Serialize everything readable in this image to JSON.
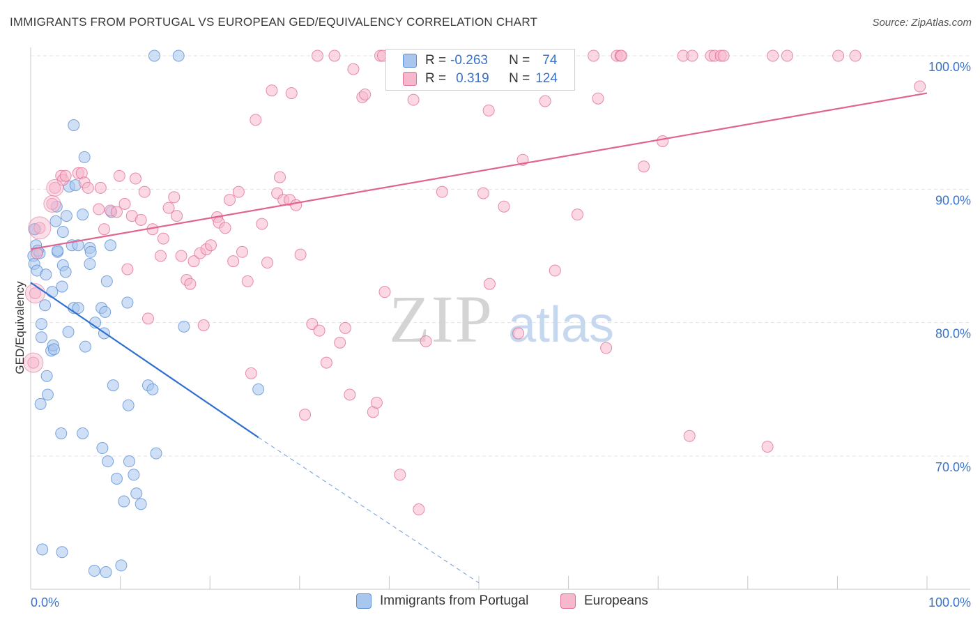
{
  "title": "IMMIGRANTS FROM PORTUGAL VS EUROPEAN GED/EQUIVALENCY CORRELATION CHART",
  "source": "Source: ZipAtlas.com",
  "watermark": {
    "zip": "ZIP",
    "atlas": "atlas"
  },
  "legend": {
    "r_label": "R =",
    "n_label": "N =",
    "rows": [
      {
        "r": "-0.263",
        "n": "74",
        "color": "#a8c6ee",
        "border": "#5b8fd4"
      },
      {
        "r": "0.319",
        "n": "124",
        "color": "#f7b8cc",
        "border": "#e07098"
      }
    ]
  },
  "chart_data": {
    "type": "scatter",
    "title": "IMMIGRANTS FROM PORTUGAL VS EUROPEAN GED/EQUIVALENCY CORRELATION CHART",
    "xlabel": "",
    "ylabel": "GED/Equivalency",
    "xlim": [
      0,
      100
    ],
    "ylim": [
      60.5,
      104
    ],
    "x_tick_labels": [
      "0.0%",
      "100.0%"
    ],
    "y_ticks": [
      70,
      80,
      90,
      100
    ],
    "y_tick_labels": [
      "70.0%",
      "80.0%",
      "90.0%",
      "100.0%"
    ],
    "grid": true,
    "series": [
      {
        "name": "Immigrants from Portugal",
        "color": "#a8c6ee",
        "stroke": "#5b8fd4",
        "trend": {
          "x0": 0,
          "y0": 83,
          "x1": 25.4,
          "y1": 71.4,
          "dash_to_x": 50,
          "dash_to_y": 60.5,
          "color": "#2e6fcf"
        },
        "points": [
          [
            0.3,
            85
          ],
          [
            0.4,
            84.4
          ],
          [
            0.5,
            87
          ],
          [
            0.6,
            85.8
          ],
          [
            0.7,
            83.9
          ],
          [
            1,
            85.2
          ],
          [
            1.2,
            79.9
          ],
          [
            1.2,
            78.9
          ],
          [
            1.6,
            81.3
          ],
          [
            1.7,
            83.6
          ],
          [
            1.8,
            76
          ],
          [
            1.9,
            74.6
          ],
          [
            2.3,
            77.9
          ],
          [
            2.4,
            82.3
          ],
          [
            2.5,
            78.3
          ],
          [
            2.6,
            78
          ],
          [
            2.8,
            87.6
          ],
          [
            2.9,
            88.7
          ],
          [
            3,
            85.3
          ],
          [
            3,
            85.4
          ],
          [
            3.4,
            71.7
          ],
          [
            3.5,
            82.7
          ],
          [
            3.6,
            84.3
          ],
          [
            3.6,
            86.8
          ],
          [
            3.9,
            83.8
          ],
          [
            4,
            88
          ],
          [
            4.2,
            79.3
          ],
          [
            4.3,
            90.2
          ],
          [
            4.6,
            85.8
          ],
          [
            4.8,
            94.8
          ],
          [
            4.8,
            81.1
          ],
          [
            5.3,
            85.8
          ],
          [
            5.3,
            81.1
          ],
          [
            5.8,
            71.7
          ],
          [
            5.8,
            88.1
          ],
          [
            6.1,
            78.2
          ],
          [
            6.6,
            85.6
          ],
          [
            6.6,
            84.4
          ],
          [
            6.7,
            85.3
          ],
          [
            7.2,
            80
          ],
          [
            7.9,
            81.1
          ],
          [
            8,
            70.6
          ],
          [
            8.2,
            79.2
          ],
          [
            8.3,
            80.8
          ],
          [
            8.5,
            83.1
          ],
          [
            8.6,
            69.6
          ],
          [
            8.9,
            85.8
          ],
          [
            9.2,
            75.3
          ],
          [
            9.6,
            68.3
          ],
          [
            10.4,
            66.6
          ],
          [
            10.8,
            81.5
          ],
          [
            10.9,
            73.8
          ],
          [
            11,
            69.6
          ],
          [
            11.5,
            68.6
          ],
          [
            11.8,
            67.2
          ],
          [
            12.3,
            66.4
          ],
          [
            13.1,
            75.3
          ],
          [
            13.6,
            75
          ],
          [
            14,
            70.2
          ],
          [
            17.1,
            79.7
          ],
          [
            25.4,
            75
          ],
          [
            1.3,
            63
          ],
          [
            3.5,
            62.8
          ],
          [
            7.1,
            61.4
          ],
          [
            8.4,
            61.3
          ],
          [
            10.1,
            61.8
          ],
          [
            13.8,
            100
          ],
          [
            16.5,
            100
          ],
          [
            0.4,
            87
          ],
          [
            0.8,
            85.4
          ],
          [
            5,
            90.3
          ],
          [
            6,
            92.4
          ],
          [
            9,
            88.3
          ],
          [
            1.1,
            73.9
          ]
        ]
      },
      {
        "name": "Europeans",
        "color": "#f7b8cc",
        "stroke": "#e07098",
        "trend": {
          "x0": 0,
          "y0": 85.5,
          "x1": 100,
          "y1": 97.2,
          "color": "#e0648f"
        },
        "points": [
          [
            0.3,
            77
          ],
          [
            0.5,
            82.2
          ],
          [
            0.7,
            85.2
          ],
          [
            1,
            87.1
          ],
          [
            2.4,
            88.9
          ],
          [
            2.7,
            90.1
          ],
          [
            3.4,
            91
          ],
          [
            3.6,
            90.7
          ],
          [
            3.9,
            91
          ],
          [
            5.3,
            91.2
          ],
          [
            5.7,
            91.2
          ],
          [
            6,
            90.5
          ],
          [
            6.4,
            90.1
          ],
          [
            7.6,
            88.5
          ],
          [
            7.8,
            90.1
          ],
          [
            8.2,
            87
          ],
          [
            8.9,
            88.4
          ],
          [
            9.6,
            88.3
          ],
          [
            9.9,
            91
          ],
          [
            10.5,
            88.9
          ],
          [
            10.8,
            84
          ],
          [
            11.3,
            88
          ],
          [
            11.7,
            90.8
          ],
          [
            12.3,
            87.7
          ],
          [
            12.7,
            89.8
          ],
          [
            13.1,
            80.3
          ],
          [
            13.6,
            87
          ],
          [
            14.5,
            85
          ],
          [
            14.8,
            86.3
          ],
          [
            15.4,
            88.6
          ],
          [
            16,
            89.4
          ],
          [
            16.3,
            88
          ],
          [
            16.8,
            85
          ],
          [
            17.4,
            83.2
          ],
          [
            17.8,
            82.9
          ],
          [
            18.2,
            84.6
          ],
          [
            18.9,
            85.2
          ],
          [
            19.3,
            79.8
          ],
          [
            19.6,
            85.5
          ],
          [
            20.1,
            85.8
          ],
          [
            20.8,
            87.9
          ],
          [
            21,
            87.5
          ],
          [
            21.7,
            87.1
          ],
          [
            22.2,
            89.2
          ],
          [
            22.6,
            84.6
          ],
          [
            23.2,
            89.8
          ],
          [
            23.6,
            85.3
          ],
          [
            24.2,
            83.1
          ],
          [
            24.6,
            76.2
          ],
          [
            25.1,
            95.2
          ],
          [
            25.8,
            87.4
          ],
          [
            26.4,
            84.5
          ],
          [
            26.9,
            97.4
          ],
          [
            27.5,
            89.7
          ],
          [
            27.8,
            90.9
          ],
          [
            28.2,
            89.2
          ],
          [
            28.9,
            89.2
          ],
          [
            29.1,
            97.2
          ],
          [
            29.6,
            88.8
          ],
          [
            30.1,
            85.1
          ],
          [
            30.6,
            73.1
          ],
          [
            31.4,
            79.9
          ],
          [
            32,
            100
          ],
          [
            32.2,
            79.4
          ],
          [
            33,
            77
          ],
          [
            33.9,
            100
          ],
          [
            34.5,
            78.5
          ],
          [
            35.1,
            79.6
          ],
          [
            35.6,
            74.6
          ],
          [
            36,
            99
          ],
          [
            37,
            96.9
          ],
          [
            37.3,
            97.1
          ],
          [
            38.2,
            73.3
          ],
          [
            38.6,
            74
          ],
          [
            39,
            100
          ],
          [
            39.3,
            100
          ],
          [
            39.5,
            82.3
          ],
          [
            41.2,
            68.6
          ],
          [
            42.4,
            100
          ],
          [
            42.7,
            96.7
          ],
          [
            43.3,
            66
          ],
          [
            44.1,
            78.6
          ],
          [
            45.1,
            100
          ],
          [
            45.9,
            89.8
          ],
          [
            46.6,
            100
          ],
          [
            47.5,
            100
          ],
          [
            47.9,
            100
          ],
          [
            49.9,
            100
          ],
          [
            50.5,
            89.7
          ],
          [
            51.1,
            95.9
          ],
          [
            51.2,
            82.9
          ],
          [
            52.2,
            100
          ],
          [
            52.8,
            88.7
          ],
          [
            53.3,
            100
          ],
          [
            54.4,
            79.2
          ],
          [
            54.9,
            92.2
          ],
          [
            57.4,
            96.6
          ],
          [
            58.5,
            83.9
          ],
          [
            58.9,
            100
          ],
          [
            61,
            88.1
          ],
          [
            62.8,
            100
          ],
          [
            63.3,
            96.8
          ],
          [
            64.2,
            78.1
          ],
          [
            65.4,
            100
          ],
          [
            65.8,
            100
          ],
          [
            65.9,
            100
          ],
          [
            68.4,
            91.7
          ],
          [
            70.5,
            93.6
          ],
          [
            72.8,
            100
          ],
          [
            73.5,
            71.5
          ],
          [
            73.8,
            100
          ],
          [
            75.9,
            100
          ],
          [
            76.3,
            100
          ],
          [
            77,
            100
          ],
          [
            77.3,
            100
          ],
          [
            82.2,
            70.7
          ],
          [
            82.8,
            100
          ],
          [
            84.4,
            100
          ],
          [
            90.1,
            100
          ],
          [
            92,
            100
          ],
          [
            99.2,
            97.7
          ]
        ]
      }
    ]
  },
  "bottom_legend": [
    {
      "label": "Immigrants from Portugal",
      "color": "#a8c6ee",
      "border": "#5b8fd4"
    },
    {
      "label": "Europeans",
      "color": "#f7b8cc",
      "border": "#e07098"
    }
  ]
}
